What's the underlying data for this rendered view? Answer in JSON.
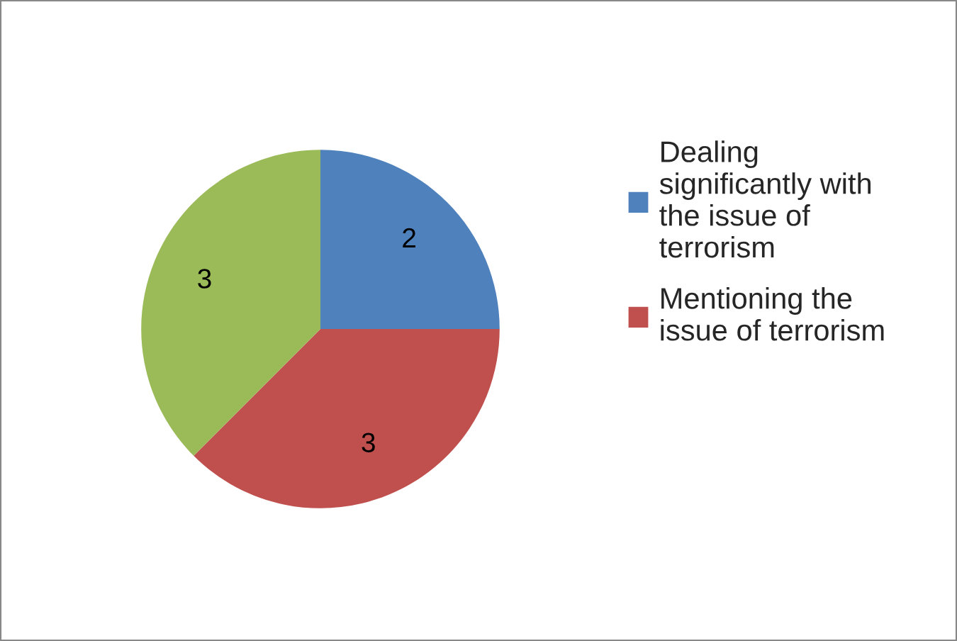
{
  "chart_data": {
    "type": "pie",
    "categories": [
      "Dealing significantly with the issue of terrorism",
      "Mentioning the issue of terrorism",
      null
    ],
    "values": [
      2,
      3,
      3
    ],
    "colors": [
      "#4f81bd",
      "#c0504d",
      "#9bbb59"
    ],
    "data_labels": true,
    "legend": "right"
  }
}
